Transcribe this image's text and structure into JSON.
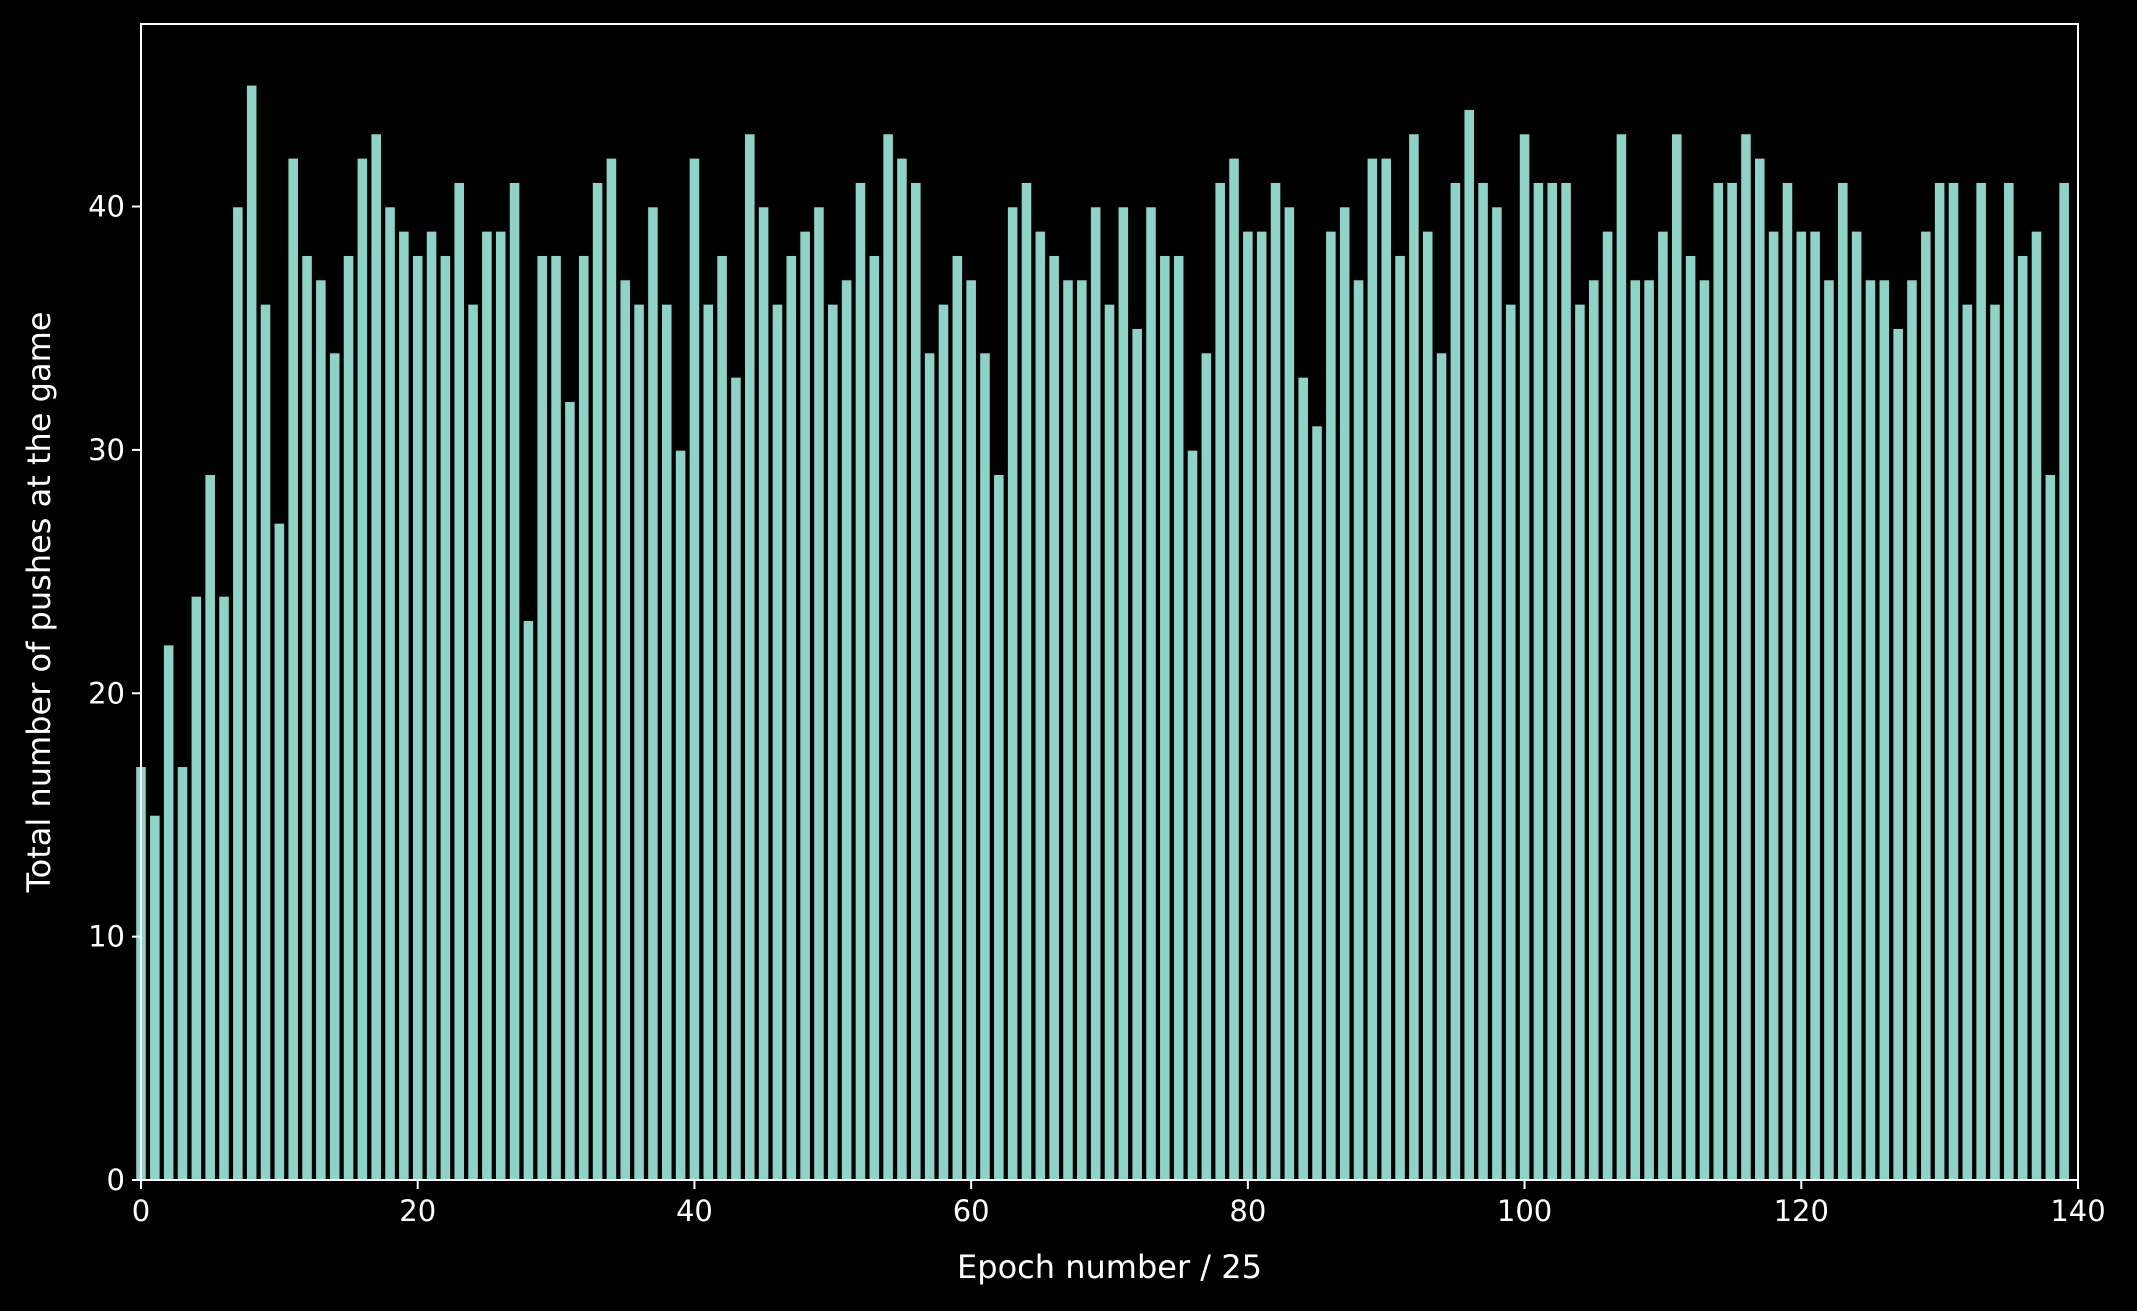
{
  "chart_data": {
    "type": "bar",
    "title": "",
    "xlabel": "Epoch number / 25",
    "ylabel": "Total number of pushes at the game",
    "xlim": [
      0,
      140
    ],
    "ylim": [
      0,
      47.5
    ],
    "x_ticks": [
      "0",
      "20",
      "40",
      "60",
      "80",
      "100",
      "120",
      "140"
    ],
    "y_ticks": [
      "0",
      "10",
      "20",
      "30",
      "40"
    ],
    "grid": false,
    "legend": "none",
    "bar_color": "#8dd3c7",
    "bar_edge_color": "#000000",
    "background_color": "#000000",
    "axis_color": "#ffffff",
    "x": [
      0,
      1,
      2,
      3,
      4,
      5,
      6,
      7,
      8,
      9,
      10,
      11,
      12,
      13,
      14,
      15,
      16,
      17,
      18,
      19,
      20,
      21,
      22,
      23,
      24,
      25,
      26,
      27,
      28,
      29,
      30,
      31,
      32,
      33,
      34,
      35,
      36,
      37,
      38,
      39,
      40,
      41,
      42,
      43,
      44,
      45,
      46,
      47,
      48,
      49,
      50,
      51,
      52,
      53,
      54,
      55,
      56,
      57,
      58,
      59,
      60,
      61,
      62,
      63,
      64,
      65,
      66,
      67,
      68,
      69,
      70,
      71,
      72,
      73,
      74,
      75,
      76,
      77,
      78,
      79,
      80,
      81,
      82,
      83,
      84,
      85,
      86,
      87,
      88,
      89,
      90,
      91,
      92,
      93,
      94,
      95,
      96,
      97,
      98,
      99,
      100,
      101,
      102,
      103,
      104,
      105,
      106,
      107,
      108,
      109,
      110,
      111,
      112,
      113,
      114,
      115,
      116,
      117,
      118,
      119,
      120,
      121,
      122,
      123,
      124,
      125,
      126,
      127,
      128,
      129,
      130,
      131,
      132,
      133,
      134,
      135,
      136,
      137,
      138,
      139
    ],
    "values": [
      17,
      15,
      22,
      17,
      24,
      29,
      24,
      40,
      45,
      36,
      27,
      42,
      38,
      37,
      34,
      38,
      42,
      43,
      40,
      39,
      38,
      39,
      38,
      41,
      36,
      39,
      39,
      41,
      23,
      38,
      38,
      32,
      38,
      41,
      42,
      37,
      36,
      40,
      36,
      30,
      42,
      36,
      38,
      33,
      43,
      40,
      36,
      38,
      39,
      40,
      36,
      37,
      41,
      38,
      43,
      42,
      41,
      34,
      36,
      38,
      37,
      34,
      29,
      40,
      41,
      39,
      38,
      37,
      37,
      40,
      36,
      40,
      35,
      40,
      38,
      38,
      30,
      34,
      41,
      42,
      39,
      39,
      41,
      40,
      33,
      31,
      39,
      40,
      37,
      42,
      42,
      38,
      43,
      39,
      34,
      41,
      44,
      41,
      40,
      36,
      43,
      41,
      41,
      41,
      36,
      37,
      39,
      43,
      37,
      37,
      39,
      43,
      38,
      37,
      41,
      41,
      43,
      42,
      39,
      41,
      39,
      39,
      37,
      41,
      39,
      37,
      37,
      35,
      37,
      39,
      41,
      41,
      36,
      41,
      36,
      41,
      38,
      39,
      29,
      41
    ]
  }
}
